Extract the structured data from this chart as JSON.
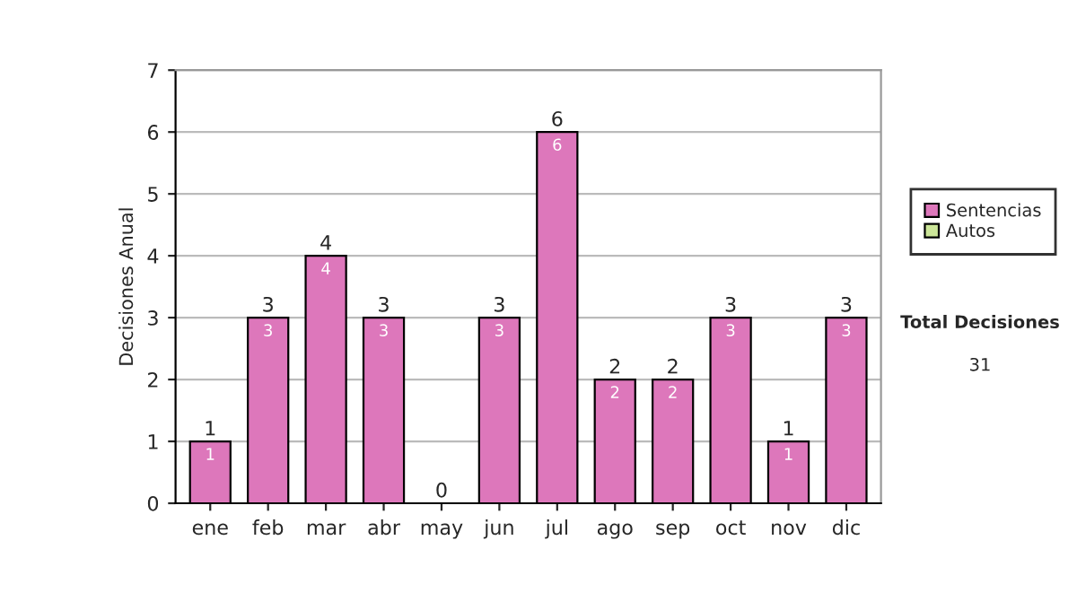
{
  "chart_data": {
    "type": "bar",
    "ylabel": "Decisiones Anual",
    "categories": [
      "ene",
      "feb",
      "mar",
      "abr",
      "may",
      "jun",
      "jul",
      "ago",
      "sep",
      "oct",
      "nov",
      "dic"
    ],
    "stacked": true,
    "series": [
      {
        "name": "Sentencias",
        "color": "#dd77bb",
        "values": [
          1,
          3,
          4,
          3,
          0,
          3,
          6,
          2,
          2,
          3,
          1,
          3
        ],
        "value_labels": [
          "1",
          "3",
          "4",
          "3",
          null,
          "3",
          "6",
          "2",
          "2",
          "3",
          "1",
          "3"
        ]
      },
      {
        "name": "Autos",
        "color": "#cce699",
        "values": [
          0,
          0,
          0,
          0,
          0,
          0,
          0,
          0,
          0,
          0,
          0,
          0
        ]
      }
    ],
    "totals": [
      "1",
      "3",
      "4",
      "3",
      "0",
      "3",
      "6",
      "2",
      "2",
      "3",
      "1",
      "3"
    ],
    "ylim": [
      0,
      7
    ],
    "yticks": [
      0,
      1,
      2,
      3,
      4,
      5,
      6,
      7
    ],
    "grid": "y",
    "legend": "right",
    "annotations": [
      "Total Decisiones",
      "31"
    ]
  }
}
